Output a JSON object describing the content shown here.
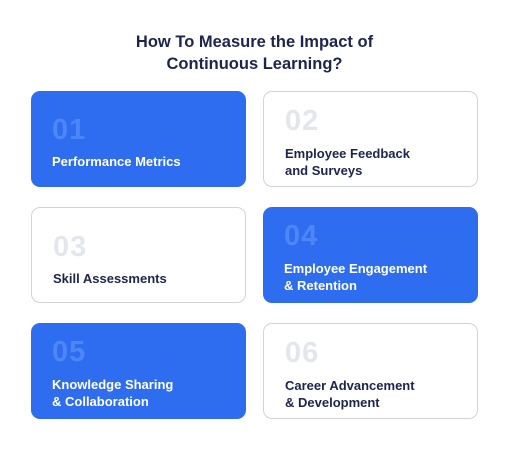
{
  "title": {
    "line1": "How To Measure the Impact of",
    "line2": "Continuous Learning?"
  },
  "cards": [
    {
      "number": "01",
      "label_line1": "Performance Metrics",
      "label_line2": "",
      "style": "blue"
    },
    {
      "number": "02",
      "label_line1": "Employee Feedback",
      "label_line2": "and Surveys",
      "style": "white"
    },
    {
      "number": "03",
      "label_line1": "Skill Assessments",
      "label_line2": "",
      "style": "white"
    },
    {
      "number": "04",
      "label_line1": "Employee Engagement",
      "label_line2": "& Retention",
      "style": "blue"
    },
    {
      "number": "05",
      "label_line1": "Knowledge Sharing",
      "label_line2": "& Collaboration",
      "style": "blue"
    },
    {
      "number": "06",
      "label_line1": "Career Advancement",
      "label_line2": "& Development",
      "style": "white"
    }
  ],
  "colors": {
    "accent_blue": "#2f6df0",
    "number_on_blue": "#4d86f7",
    "number_on_white": "#e3e6ec",
    "text_dark": "#1c2450",
    "card_border": "#cfd3db"
  }
}
